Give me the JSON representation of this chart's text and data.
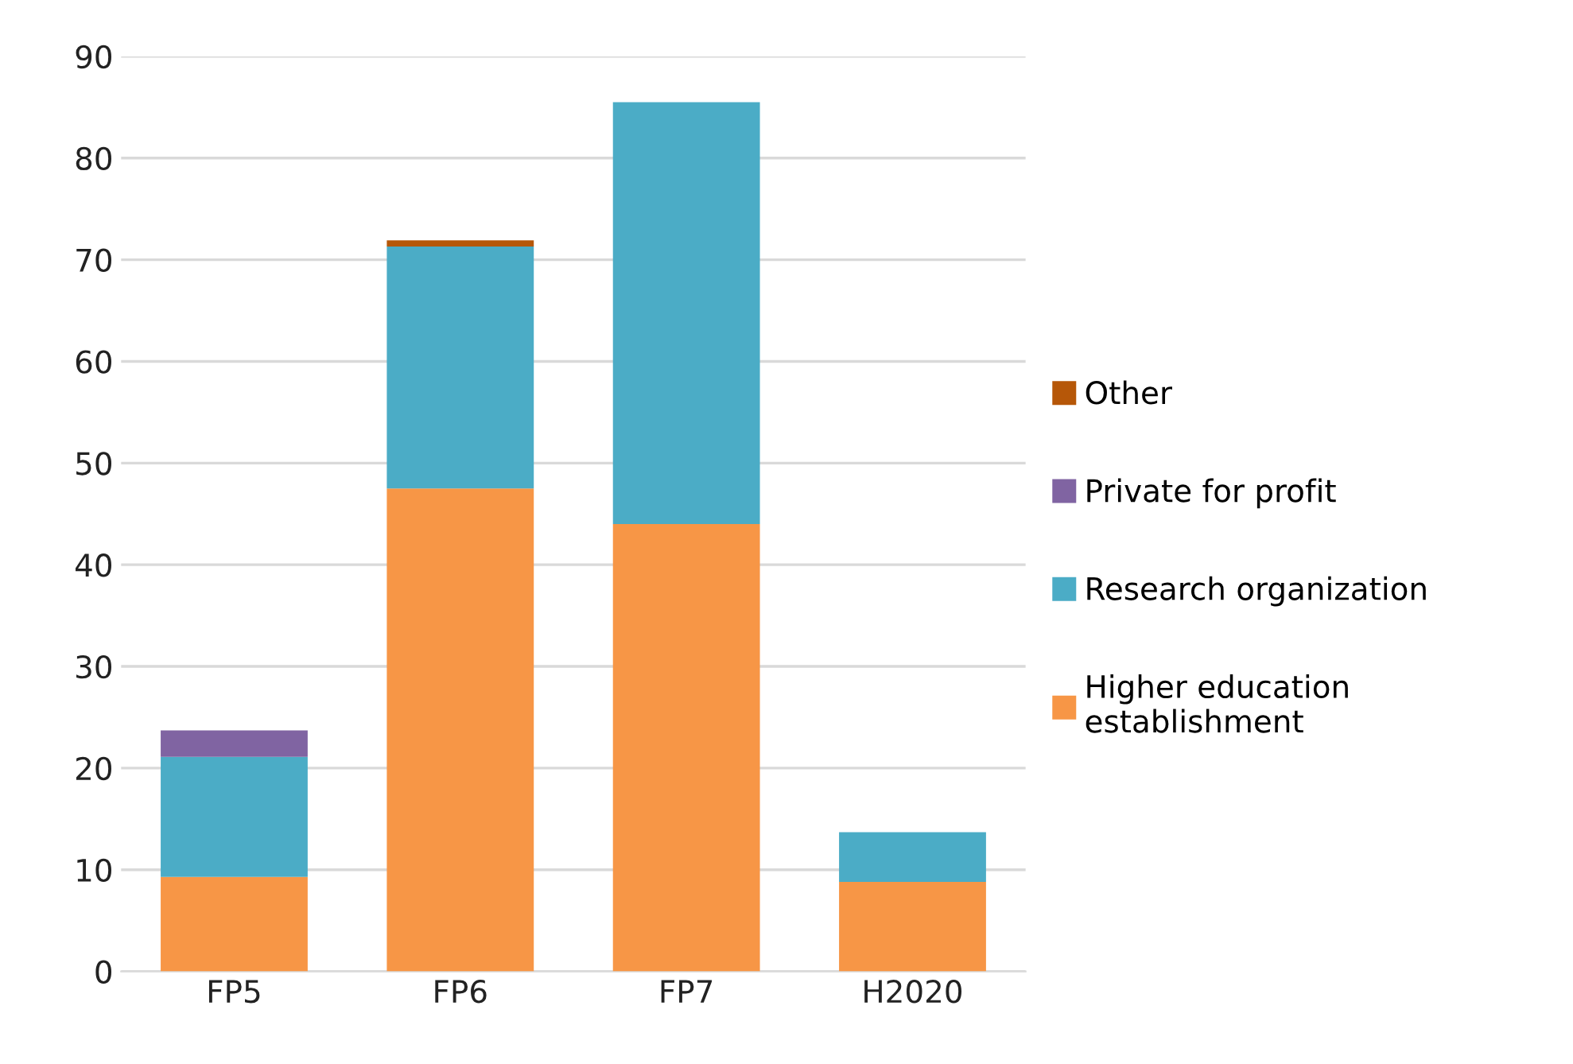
{
  "chart_data": {
    "type": "bar",
    "stacked": true,
    "categories": [
      "FP5",
      "FP6",
      "FP7",
      "H2020"
    ],
    "series": [
      {
        "name": "Higher education establishment",
        "color": "#f79646",
        "values": [
          9.3,
          47.5,
          44.0,
          8.8
        ]
      },
      {
        "name": "Research organization",
        "color": "#4bacc6",
        "values": [
          11.8,
          23.8,
          41.5,
          4.9
        ]
      },
      {
        "name": "Private for profit",
        "color": "#8064a2",
        "values": [
          2.6,
          0,
          0,
          0
        ]
      },
      {
        "name": "Other",
        "color": "#b65708",
        "values": [
          0,
          0.6,
          0,
          0
        ]
      }
    ],
    "ylim": [
      0,
      90
    ],
    "yticks": [
      0,
      10,
      20,
      30,
      40,
      50,
      60,
      70,
      80,
      90
    ],
    "grid": "y",
    "legend": "right"
  }
}
